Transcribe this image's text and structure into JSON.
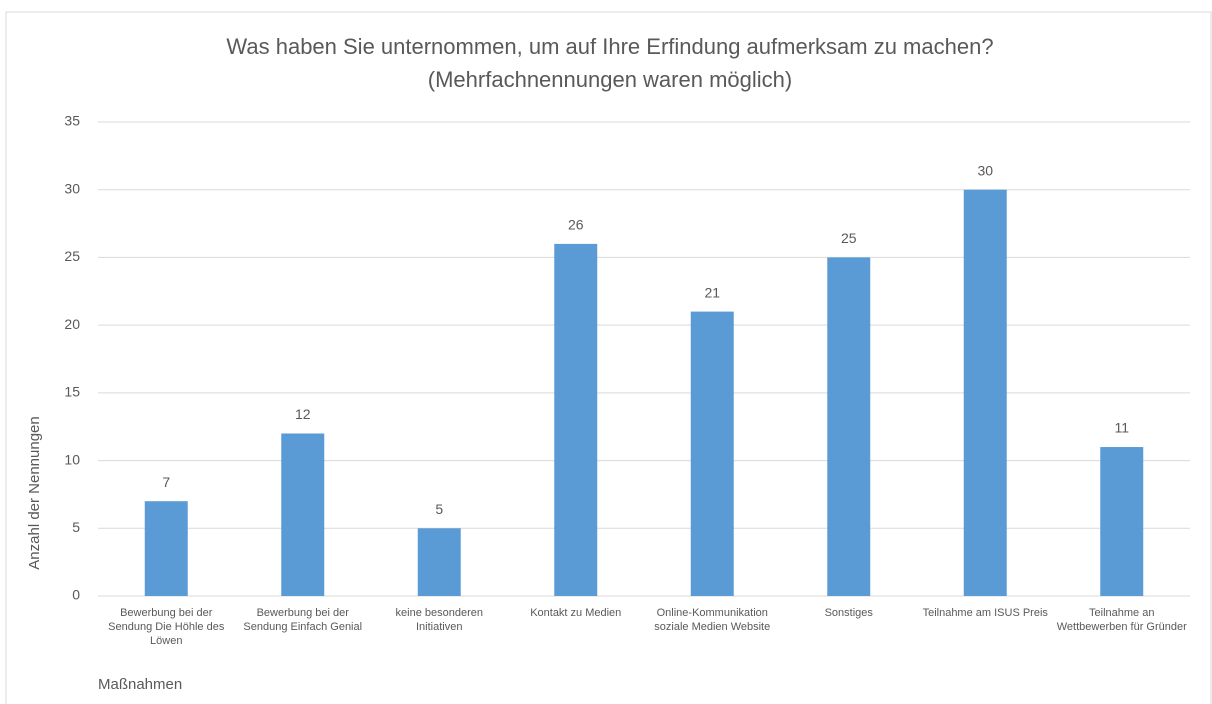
{
  "chart_data": {
    "type": "bar",
    "title": "Was haben Sie unternommen, um auf Ihre Erfindung aufmerksam zu machen?",
    "subtitle": "(Mehrfachnennungen waren möglich)",
    "x_label": "Maßnahmen",
    "y_label": "Anzahl der Nennungen",
    "categories": [
      "Bewerbung bei der Sendung Die Höhle des Löwen",
      "Bewerbung bei der Sendung Einfach Genial",
      "keine besonderen Initiativen",
      "Kontakt zu Medien",
      "Online-Kommunikation soziale Medien Website",
      "Sonstiges",
      "Teilnahme am ISUS Preis",
      "Teilnahme an Wettbewerben für Gründer"
    ],
    "values": [
      7,
      12,
      5,
      26,
      21,
      25,
      30,
      11
    ],
    "color": "#5b9bd5",
    "ylim": [
      0,
      35
    ],
    "yticks": [
      0,
      5,
      10,
      15,
      20,
      25,
      30,
      35
    ],
    "grid": true
  }
}
